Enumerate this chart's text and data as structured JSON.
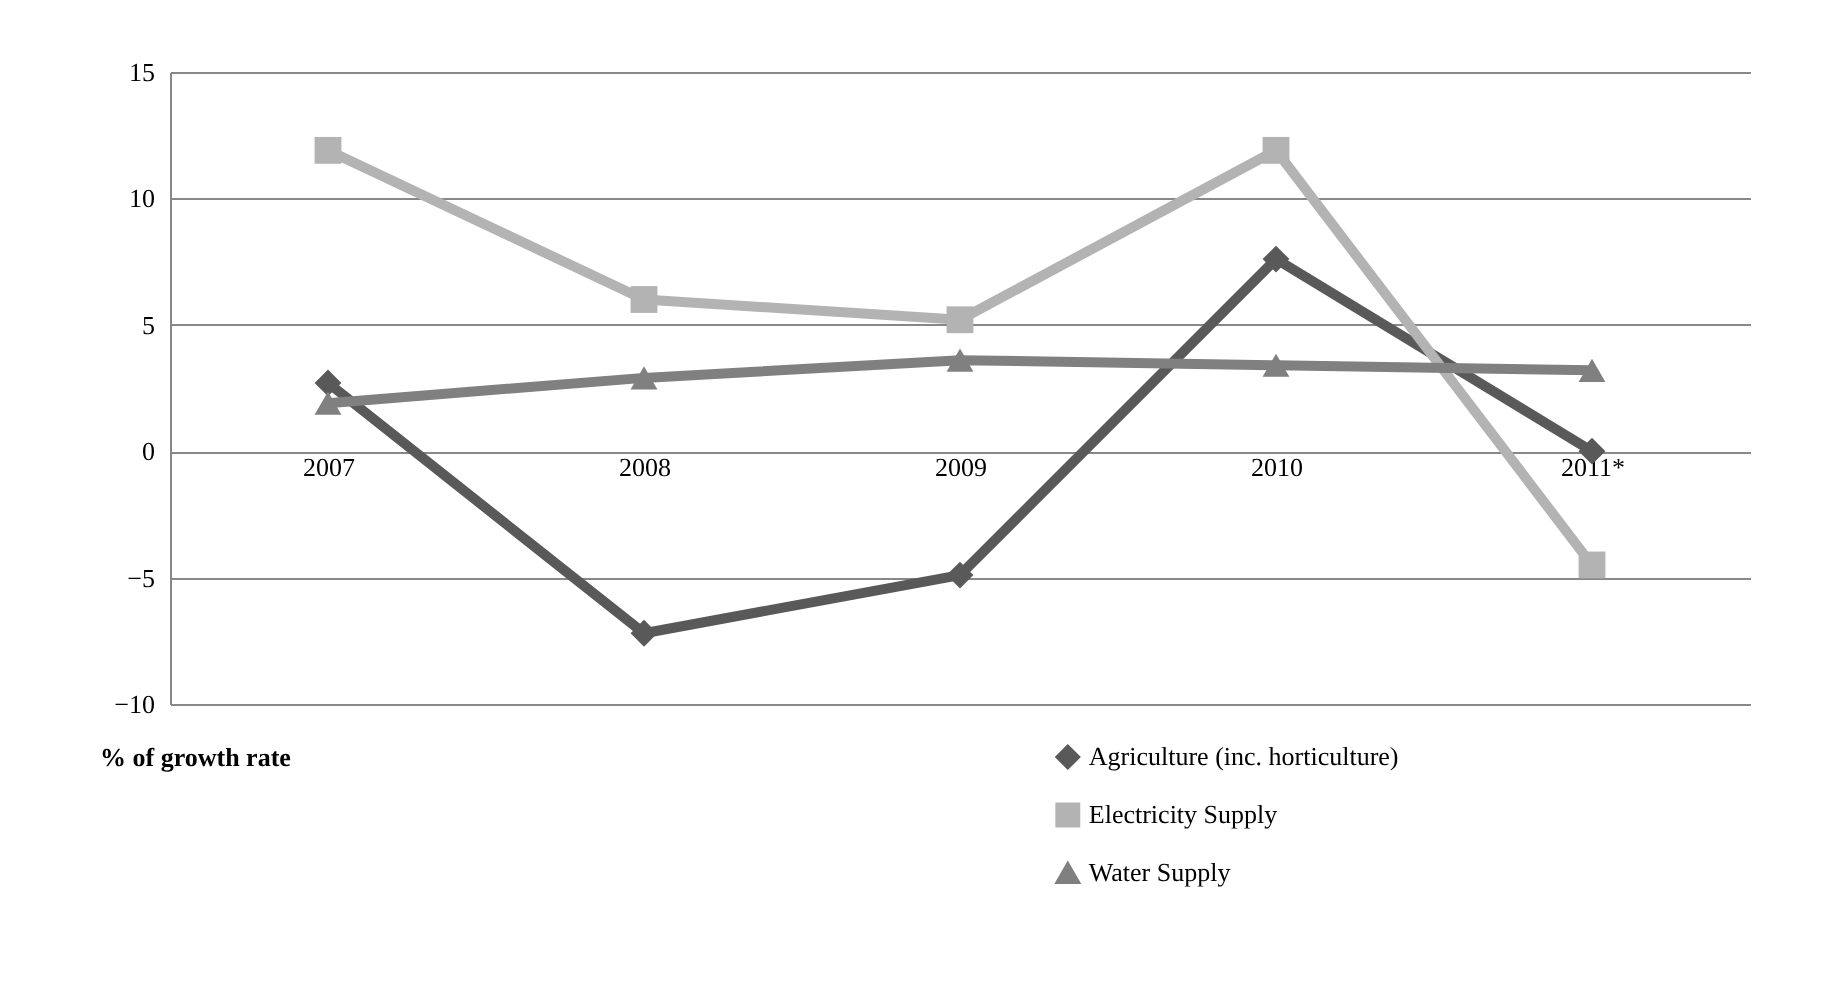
{
  "chart_data": {
    "type": "line",
    "ylabel": "% of growth rate",
    "categories": [
      "2007",
      "2008",
      "2009",
      "2010",
      "2011*"
    ],
    "series": [
      {
        "name": "Agriculture (inc. horticulture)",
        "color": "#595959",
        "marker": "diamond",
        "values": [
          2.7,
          -7.2,
          -4.9,
          7.6,
          0
        ]
      },
      {
        "name": "Electricity Supply",
        "color": "#b3b3b3",
        "marker": "square",
        "values": [
          11.9,
          6.0,
          5.2,
          11.9,
          -4.5
        ]
      },
      {
        "name": "Water Supply",
        "color": "#808080",
        "marker": "triangle",
        "values": [
          1.9,
          2.9,
          3.6,
          3.4,
          3.2
        ]
      }
    ],
    "ylim": [
      -10,
      15
    ],
    "yticks": [
      -10,
      -5,
      0,
      5,
      10,
      15
    ],
    "grid": "y",
    "legend": "bottom right",
    "line_style": "solid"
  }
}
